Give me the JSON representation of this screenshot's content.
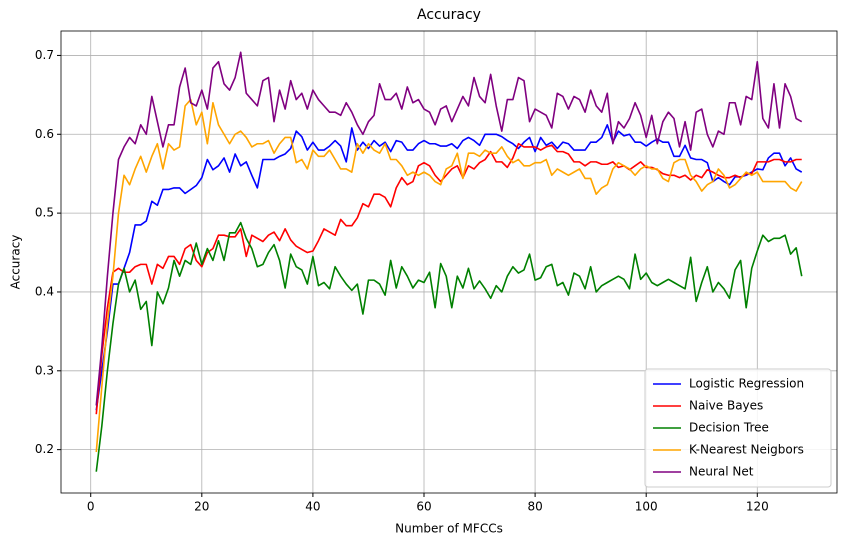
{
  "chart_data": {
    "type": "line",
    "title": "Accuracy",
    "x_label": "Number of MFCCs",
    "y_label": "Accuracy",
    "x": [
      1,
      2,
      3,
      4,
      5,
      6,
      7,
      8,
      9,
      10,
      11,
      12,
      13,
      14,
      15,
      16,
      17,
      18,
      19,
      20,
      21,
      22,
      23,
      24,
      25,
      26,
      27,
      28,
      29,
      30,
      31,
      32,
      33,
      34,
      35,
      36,
      37,
      38,
      39,
      40,
      41,
      42,
      43,
      44,
      45,
      46,
      47,
      48,
      49,
      50,
      51,
      52,
      53,
      54,
      55,
      56,
      57,
      58,
      59,
      60,
      61,
      62,
      63,
      64,
      65,
      66,
      67,
      68,
      69,
      70,
      71,
      72,
      73,
      74,
      75,
      76,
      77,
      78,
      79,
      80,
      81,
      82,
      83,
      84,
      85,
      86,
      87,
      88,
      89,
      90,
      91,
      92,
      93,
      94,
      95,
      96,
      97,
      98,
      99,
      100,
      101,
      102,
      103,
      104,
      105,
      106,
      107,
      108,
      109,
      110,
      111,
      112,
      113,
      114,
      115,
      116,
      117,
      118,
      119,
      120,
      121,
      122,
      123,
      124,
      125,
      126,
      127,
      128
    ],
    "series": [
      {
        "name": "Logistic Regression",
        "color": "#0000ff",
        "values": [
          0.25,
          0.3,
          0.35,
          0.41,
          0.41,
          0.43,
          0.45,
          0.485,
          0.485,
          0.49,
          0.515,
          0.51,
          0.53,
          0.53,
          0.532,
          0.532,
          0.525,
          0.53,
          0.535,
          0.545,
          0.568,
          0.555,
          0.56,
          0.57,
          0.552,
          0.575,
          0.56,
          0.565,
          0.548,
          0.532,
          0.568,
          0.568,
          0.568,
          0.572,
          0.575,
          0.582,
          0.604,
          0.597,
          0.58,
          0.59,
          0.58,
          0.58,
          0.585,
          0.592,
          0.585,
          0.565,
          0.608,
          0.58,
          0.59,
          0.582,
          0.592,
          0.585,
          0.59,
          0.578,
          0.592,
          0.59,
          0.58,
          0.58,
          0.588,
          0.592,
          0.588,
          0.588,
          0.585,
          0.585,
          0.588,
          0.582,
          0.592,
          0.596,
          0.592,
          0.586,
          0.6,
          0.6,
          0.6,
          0.597,
          0.592,
          0.588,
          0.582,
          0.59,
          0.596,
          0.578,
          0.596,
          0.586,
          0.59,
          0.582,
          0.59,
          0.588,
          0.58,
          0.58,
          0.58,
          0.59,
          0.59,
          0.596,
          0.612,
          0.59,
          0.604,
          0.598,
          0.6,
          0.59,
          0.59,
          0.585,
          0.59,
          0.594,
          0.59,
          0.59,
          0.572,
          0.572,
          0.586,
          0.57,
          0.568,
          0.568,
          0.564,
          0.54,
          0.545,
          0.54,
          0.536,
          0.546,
          0.546,
          0.548,
          0.552,
          0.556,
          0.555,
          0.57,
          0.576,
          0.576,
          0.56,
          0.57,
          0.556,
          0.552
        ]
      },
      {
        "name": "Naive Bayes",
        "color": "#ff0000",
        "values": [
          0.245,
          0.32,
          0.38,
          0.425,
          0.43,
          0.425,
          0.425,
          0.432,
          0.435,
          0.435,
          0.41,
          0.435,
          0.43,
          0.445,
          0.445,
          0.435,
          0.455,
          0.46,
          0.44,
          0.432,
          0.45,
          0.455,
          0.472,
          0.472,
          0.47,
          0.47,
          0.48,
          0.445,
          0.472,
          0.468,
          0.464,
          0.472,
          0.476,
          0.465,
          0.48,
          0.466,
          0.458,
          0.454,
          0.45,
          0.452,
          0.465,
          0.48,
          0.476,
          0.472,
          0.492,
          0.484,
          0.484,
          0.494,
          0.512,
          0.508,
          0.524,
          0.524,
          0.52,
          0.508,
          0.532,
          0.545,
          0.536,
          0.54,
          0.56,
          0.564,
          0.56,
          0.548,
          0.54,
          0.548,
          0.556,
          0.56,
          0.545,
          0.56,
          0.556,
          0.564,
          0.568,
          0.578,
          0.565,
          0.565,
          0.558,
          0.57,
          0.588,
          0.584,
          0.584,
          0.584,
          0.58,
          0.584,
          0.586,
          0.578,
          0.578,
          0.575,
          0.565,
          0.565,
          0.56,
          0.565,
          0.565,
          0.562,
          0.562,
          0.565,
          0.558,
          0.56,
          0.555,
          0.56,
          0.565,
          0.558,
          0.558,
          0.555,
          0.55,
          0.548,
          0.548,
          0.545,
          0.548,
          0.542,
          0.548,
          0.545,
          0.555,
          0.552,
          0.548,
          0.545,
          0.545,
          0.548,
          0.545,
          0.55,
          0.55,
          0.565,
          0.565,
          0.565,
          0.568,
          0.568,
          0.565,
          0.565,
          0.568,
          0.568
        ]
      },
      {
        "name": "Decision Tree",
        "color": "#008000",
        "values": [
          0.172,
          0.23,
          0.3,
          0.36,
          0.41,
          0.43,
          0.4,
          0.415,
          0.378,
          0.388,
          0.332,
          0.4,
          0.385,
          0.405,
          0.44,
          0.42,
          0.44,
          0.435,
          0.462,
          0.435,
          0.455,
          0.44,
          0.465,
          0.44,
          0.475,
          0.475,
          0.488,
          0.468,
          0.455,
          0.432,
          0.435,
          0.45,
          0.46,
          0.44,
          0.405,
          0.448,
          0.432,
          0.428,
          0.41,
          0.445,
          0.408,
          0.412,
          0.404,
          0.432,
          0.42,
          0.41,
          0.402,
          0.41,
          0.372,
          0.415,
          0.415,
          0.41,
          0.396,
          0.44,
          0.405,
          0.432,
          0.42,
          0.405,
          0.415,
          0.412,
          0.425,
          0.38,
          0.436,
          0.42,
          0.38,
          0.42,
          0.405,
          0.43,
          0.404,
          0.414,
          0.404,
          0.392,
          0.408,
          0.4,
          0.42,
          0.432,
          0.424,
          0.428,
          0.448,
          0.415,
          0.418,
          0.432,
          0.435,
          0.408,
          0.412,
          0.396,
          0.424,
          0.42,
          0.404,
          0.432,
          0.4,
          0.408,
          0.412,
          0.416,
          0.42,
          0.416,
          0.404,
          0.448,
          0.416,
          0.424,
          0.412,
          0.408,
          0.412,
          0.416,
          0.412,
          0.408,
          0.404,
          0.444,
          0.388,
          0.412,
          0.432,
          0.4,
          0.412,
          0.404,
          0.392,
          0.428,
          0.44,
          0.38,
          0.43,
          0.452,
          0.472,
          0.464,
          0.468,
          0.468,
          0.472,
          0.448,
          0.456,
          0.42
        ]
      },
      {
        "name": "K-Nearest Neigbors",
        "color": "#ffa500",
        "values": [
          0.197,
          0.28,
          0.36,
          0.42,
          0.5,
          0.548,
          0.536,
          0.556,
          0.572,
          0.552,
          0.572,
          0.588,
          0.556,
          0.588,
          0.58,
          0.584,
          0.636,
          0.644,
          0.612,
          0.628,
          0.588,
          0.64,
          0.612,
          0.6,
          0.588,
          0.6,
          0.604,
          0.596,
          0.584,
          0.588,
          0.588,
          0.592,
          0.576,
          0.588,
          0.596,
          0.596,
          0.564,
          0.568,
          0.556,
          0.58,
          0.572,
          0.572,
          0.58,
          0.568,
          0.556,
          0.556,
          0.552,
          0.588,
          0.576,
          0.588,
          0.58,
          0.576,
          0.588,
          0.568,
          0.568,
          0.56,
          0.548,
          0.552,
          0.548,
          0.552,
          0.548,
          0.54,
          0.536,
          0.556,
          0.56,
          0.576,
          0.544,
          0.576,
          0.576,
          0.572,
          0.58,
          0.576,
          0.576,
          0.584,
          0.572,
          0.564,
          0.568,
          0.56,
          0.56,
          0.564,
          0.564,
          0.568,
          0.548,
          0.556,
          0.552,
          0.548,
          0.552,
          0.556,
          0.544,
          0.544,
          0.524,
          0.532,
          0.536,
          0.556,
          0.564,
          0.56,
          0.556,
          0.548,
          0.556,
          0.56,
          0.556,
          0.556,
          0.544,
          0.54,
          0.564,
          0.568,
          0.568,
          0.548,
          0.54,
          0.528,
          0.536,
          0.54,
          0.556,
          0.548,
          0.532,
          0.536,
          0.544,
          0.552,
          0.548,
          0.552,
          0.54,
          0.54,
          0.54,
          0.54,
          0.54,
          0.532,
          0.528,
          0.54
        ]
      },
      {
        "name": "Neural Net",
        "color": "#800080",
        "values": [
          0.256,
          0.33,
          0.42,
          0.5,
          0.568,
          0.584,
          0.596,
          0.588,
          0.612,
          0.6,
          0.648,
          0.616,
          0.584,
          0.612,
          0.612,
          0.66,
          0.684,
          0.64,
          0.636,
          0.656,
          0.632,
          0.684,
          0.692,
          0.664,
          0.656,
          0.672,
          0.704,
          0.652,
          0.644,
          0.636,
          0.668,
          0.672,
          0.616,
          0.656,
          0.632,
          0.668,
          0.644,
          0.652,
          0.632,
          0.656,
          0.644,
          0.636,
          0.628,
          0.628,
          0.624,
          0.64,
          0.628,
          0.612,
          0.6,
          0.616,
          0.624,
          0.664,
          0.644,
          0.644,
          0.652,
          0.632,
          0.66,
          0.64,
          0.644,
          0.632,
          0.628,
          0.612,
          0.632,
          0.636,
          0.616,
          0.632,
          0.648,
          0.636,
          0.672,
          0.648,
          0.64,
          0.676,
          0.636,
          0.604,
          0.644,
          0.644,
          0.672,
          0.668,
          0.616,
          0.632,
          0.628,
          0.624,
          0.608,
          0.652,
          0.648,
          0.632,
          0.648,
          0.644,
          0.628,
          0.656,
          0.636,
          0.628,
          0.652,
          0.588,
          0.616,
          0.608,
          0.62,
          0.64,
          0.624,
          0.596,
          0.624,
          0.588,
          0.616,
          0.628,
          0.62,
          0.584,
          0.616,
          0.58,
          0.628,
          0.632,
          0.6,
          0.584,
          0.604,
          0.6,
          0.64,
          0.64,
          0.612,
          0.648,
          0.644,
          0.692,
          0.62,
          0.608,
          0.664,
          0.608,
          0.664,
          0.648,
          0.62,
          0.616
        ]
      }
    ],
    "xlim": [
      -5.35,
      134.35
    ],
    "xticks": [
      0,
      20,
      40,
      60,
      80,
      100,
      120
    ],
    "ylim": [
      0.145,
      0.731
    ],
    "yticks": [
      0.2,
      0.3,
      0.4,
      0.5,
      0.6,
      0.7
    ],
    "grid": true,
    "legend": "lower right"
  }
}
